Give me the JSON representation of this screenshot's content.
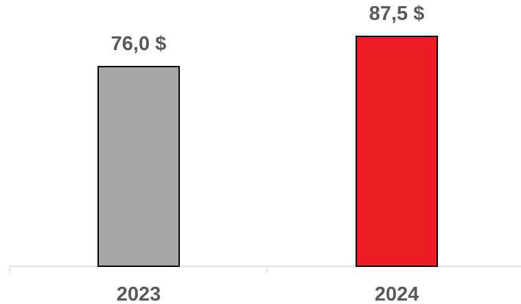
{
  "chart_data": {
    "type": "bar",
    "title": "",
    "xlabel": "",
    "ylabel": "",
    "categories": [
      "2023",
      "2024"
    ],
    "values": [
      76.0,
      87.5
    ],
    "value_labels": [
      "76,0 $",
      "87,5 $"
    ],
    "bar_colors": [
      "#a6a6a6",
      "#ed1c24"
    ],
    "ylim": [
      0,
      100
    ],
    "grid": false,
    "legend": "none"
  }
}
